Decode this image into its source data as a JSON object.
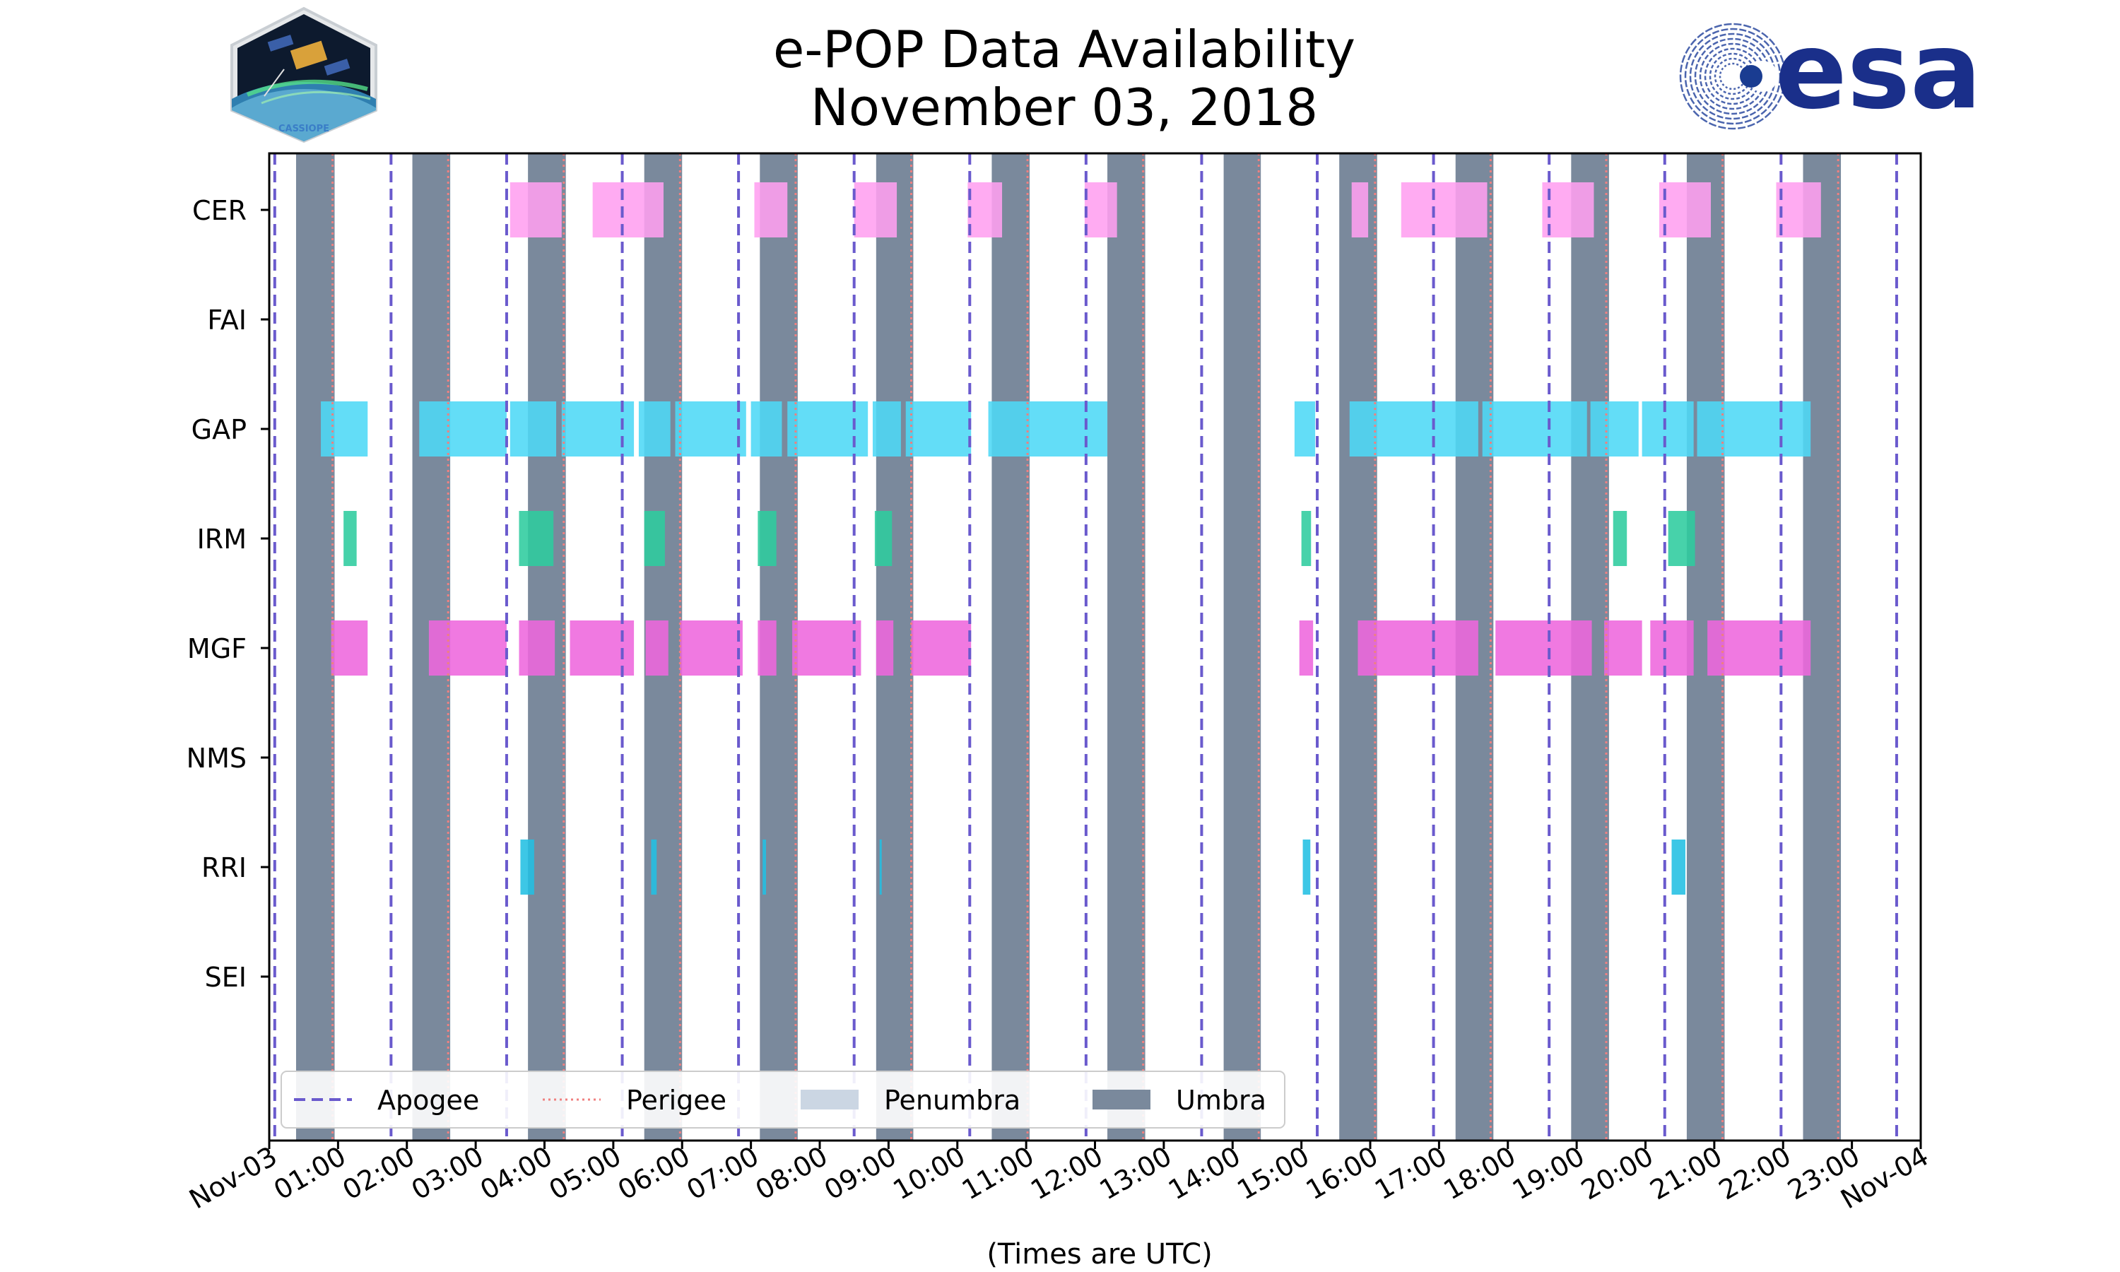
{
  "header": {
    "title_line1": "e-POP Data Availability",
    "title_line2": "November 03, 2018",
    "left_logo_text": "CASSIOPE",
    "right_logo_text": "esa"
  },
  "colors": {
    "apogee": "#6a5acd",
    "perigee": "#f08080",
    "penumbra": "#cbd6e3",
    "umbra": "#7a899c",
    "CER": "#ff9ff0",
    "GAP": "#4dd8f6",
    "IRM": "#2ecc9e",
    "MGF": "#ee66dd",
    "RRI": "#22bfe2"
  },
  "chart_data": {
    "type": "timeline",
    "title": "e-POP Data Availability November 03, 2018",
    "xlabel": "(Times are UTC)",
    "x_range_hours": [
      0,
      24
    ],
    "x_tick_labels": [
      "Nov-03",
      "01:00",
      "02:00",
      "03:00",
      "04:00",
      "05:00",
      "06:00",
      "07:00",
      "08:00",
      "09:00",
      "10:00",
      "11:00",
      "12:00",
      "13:00",
      "14:00",
      "15:00",
      "16:00",
      "17:00",
      "18:00",
      "19:00",
      "20:00",
      "21:00",
      "22:00",
      "23:00",
      "Nov-04"
    ],
    "instruments": [
      "CER",
      "FAI",
      "GAP",
      "IRM",
      "MGF",
      "NMS",
      "RRI",
      "SEI"
    ],
    "apogee_hours": [
      0.08,
      1.77,
      3.45,
      5.13,
      6.82,
      8.5,
      10.18,
      11.87,
      13.55,
      15.23,
      16.92,
      18.6,
      20.28,
      21.97,
      23.65
    ],
    "perigee_hours": [
      0.92,
      2.6,
      4.28,
      5.97,
      7.65,
      9.33,
      11.02,
      12.7,
      14.38,
      16.07,
      17.75,
      19.43,
      21.12,
      22.8
    ],
    "umbra_intervals": [
      [
        0.39,
        0.95
      ],
      [
        2.08,
        2.63
      ],
      [
        3.76,
        4.31
      ],
      [
        5.45,
        6.0
      ],
      [
        7.13,
        7.68
      ],
      [
        8.82,
        9.36
      ],
      [
        10.5,
        11.05
      ],
      [
        12.18,
        12.73
      ],
      [
        13.87,
        14.41
      ],
      [
        15.55,
        16.1
      ],
      [
        17.24,
        17.79
      ],
      [
        18.92,
        19.47
      ],
      [
        20.6,
        21.15
      ],
      [
        22.29,
        22.84
      ]
    ],
    "series": [
      {
        "name": "CER",
        "intervals": [
          [
            3.5,
            4.25
          ],
          [
            4.7,
            5.73
          ],
          [
            7.05,
            7.53
          ],
          [
            8.5,
            9.12
          ],
          [
            10.15,
            10.65
          ],
          [
            11.85,
            12.32
          ],
          [
            15.73,
            15.97
          ],
          [
            16.45,
            17.7
          ],
          [
            18.5,
            19.25
          ],
          [
            20.2,
            20.95
          ],
          [
            21.9,
            22.55
          ]
        ]
      },
      {
        "name": "FAI",
        "intervals": []
      },
      {
        "name": "GAP",
        "intervals": [
          [
            0.75,
            1.43
          ],
          [
            2.18,
            3.45
          ],
          [
            3.5,
            4.17
          ],
          [
            4.25,
            5.3
          ],
          [
            5.37,
            5.83
          ],
          [
            5.9,
            6.93
          ],
          [
            7.0,
            7.45
          ],
          [
            7.53,
            8.7
          ],
          [
            8.77,
            9.18
          ],
          [
            9.25,
            10.2
          ],
          [
            10.45,
            12.18
          ],
          [
            14.9,
            15.2
          ],
          [
            15.7,
            17.57
          ],
          [
            17.63,
            19.15
          ],
          [
            19.2,
            19.9
          ],
          [
            19.95,
            20.7
          ],
          [
            20.75,
            22.4
          ]
        ]
      },
      {
        "name": "IRM",
        "intervals": [
          [
            1.08,
            1.27
          ],
          [
            3.63,
            4.13
          ],
          [
            5.45,
            5.75
          ],
          [
            7.1,
            7.37
          ],
          [
            8.8,
            9.05
          ],
          [
            15.0,
            15.14
          ],
          [
            19.53,
            19.73
          ],
          [
            20.33,
            20.72
          ]
        ]
      },
      {
        "name": "MGF",
        "intervals": [
          [
            0.9,
            1.43
          ],
          [
            2.32,
            3.45
          ],
          [
            3.63,
            4.15
          ],
          [
            4.37,
            5.3
          ],
          [
            5.47,
            5.8
          ],
          [
            5.97,
            6.88
          ],
          [
            7.1,
            7.37
          ],
          [
            7.6,
            8.6
          ],
          [
            8.82,
            9.07
          ],
          [
            9.33,
            10.2
          ],
          [
            14.97,
            15.17
          ],
          [
            15.82,
            17.57
          ],
          [
            17.82,
            19.22
          ],
          [
            19.4,
            19.95
          ],
          [
            20.07,
            20.7
          ],
          [
            20.9,
            22.4
          ]
        ]
      },
      {
        "name": "NMS",
        "intervals": []
      },
      {
        "name": "RRI",
        "intervals": [
          [
            3.65,
            3.85
          ],
          [
            5.55,
            5.63
          ],
          [
            7.17,
            7.22
          ],
          [
            8.87,
            8.9
          ],
          [
            15.02,
            15.13
          ],
          [
            20.38,
            20.58
          ]
        ]
      },
      {
        "name": "SEI",
        "intervals": []
      }
    ],
    "legend": {
      "placement": "lower-left",
      "entries": [
        "Apogee",
        "Perigee",
        "Penumbra",
        "Umbra"
      ]
    }
  }
}
